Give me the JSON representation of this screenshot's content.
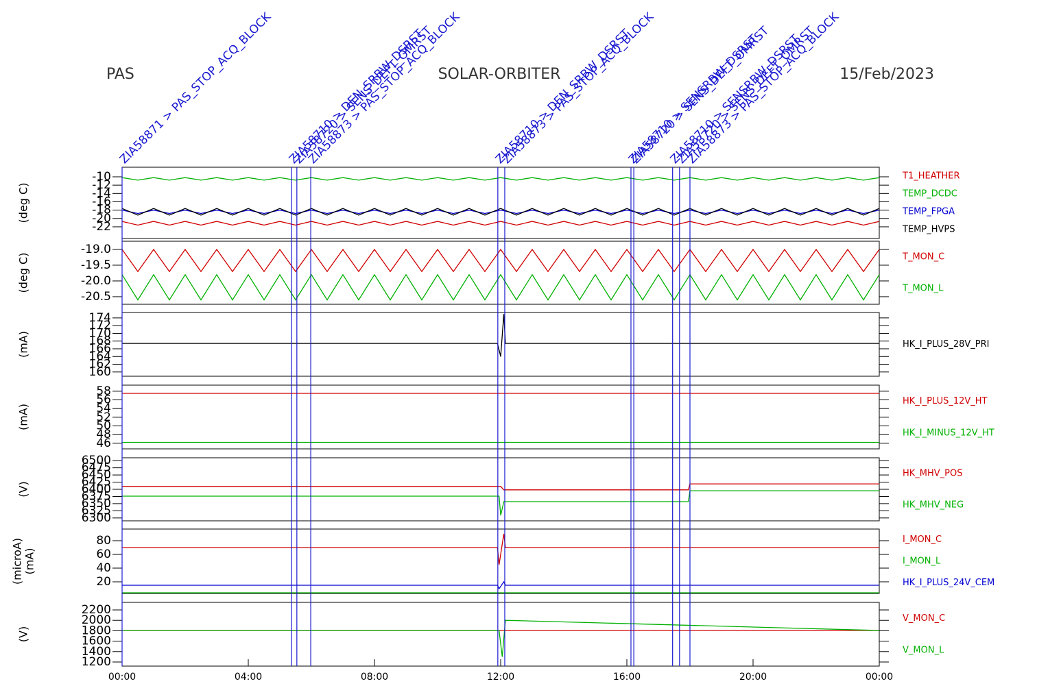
{
  "header": {
    "left": "PAS",
    "center": "SOLAR-ORBITER",
    "right": "15/Feb/2023"
  },
  "time_axis": {
    "xlim": [
      0,
      24
    ],
    "xticks": [
      {
        "value": 0,
        "label": "00:00"
      },
      {
        "value": 4,
        "label": "04:00"
      },
      {
        "value": 8,
        "label": "08:00"
      },
      {
        "value": 12,
        "label": "12:00"
      },
      {
        "value": 16,
        "label": "16:00"
      },
      {
        "value": 20,
        "label": "20:00"
      },
      {
        "value": 24,
        "label": "00:00"
      }
    ]
  },
  "events": [
    {
      "x": 0.0,
      "label": "ZIA58871 > PAS_STOP_ACQ_BLOCK"
    },
    {
      "x": 5.37,
      "label": "ZIA58710 > DEN_SRBW_DSRST"
    },
    {
      "x": 5.54,
      "label": "ZIA58720 > SENS_DEFT_OMRST"
    },
    {
      "x": 5.98,
      "label": "ZIA58873 > PAS_STOP_ACQ_BLOCK"
    },
    {
      "x": 11.91,
      "label": "ZIA58710 > DEN_SRBW_DSRST"
    },
    {
      "x": 12.13,
      "label": "ZIA58873 > PAS_STOP_ACQ_BLOCK"
    },
    {
      "x": 16.13,
      "label": "ZIA58710 > SENSRBW_DSRST"
    },
    {
      "x": 16.22,
      "label": "ZIA58720 > SENS_DEFT_OMRST"
    },
    {
      "x": 17.45,
      "label": "ZIA58710 > SENSRBW_DSRST"
    },
    {
      "x": 17.67,
      "label": "ZIA58720 > SENS_DEFT_OMRST"
    },
    {
      "x": 18.0,
      "label": "ZIA58873 > PAS_STOP_ACQ_BLOCK"
    }
  ],
  "chart_data": [
    {
      "type": "line",
      "ylabel": [
        "(deg C)"
      ],
      "ylim": [
        -24.8,
        -7.7
      ],
      "yticks": [
        -10,
        -12,
        -14,
        -16,
        -18,
        -20,
        -22
      ],
      "x": [
        0,
        0.5,
        1,
        1.5,
        2,
        2.5,
        3,
        3.5,
        4,
        4.5,
        5,
        5.5,
        6,
        6.5,
        7,
        7.5,
        8,
        8.5,
        9,
        9.5,
        10,
        10.5,
        11,
        11.5,
        12,
        12.5,
        13,
        13.5,
        14,
        14.5,
        15,
        15.5,
        16,
        16.5,
        17,
        17.5,
        18,
        18.5,
        19,
        19.5,
        20,
        20.5,
        21,
        21.5,
        22,
        22.5,
        23,
        23.5,
        24
      ],
      "series": [
        {
          "name": "T1_HEATHER",
          "color": "#d00000",
          "values": [
            -20.7,
            -21.6,
            -20.7,
            -21.6,
            -20.7,
            -21.6,
            -20.7,
            -21.6,
            -20.7,
            -21.6,
            -20.7,
            -21.6,
            -20.7,
            -21.6,
            -20.7,
            -21.6,
            -20.7,
            -21.6,
            -20.7,
            -21.6,
            -20.7,
            -21.6,
            -20.7,
            -21.6,
            -20.7,
            -21.6,
            -20.7,
            -21.6,
            -20.7,
            -21.6,
            -20.7,
            -21.6,
            -20.7,
            -21.6,
            -20.7,
            -21.6,
            -20.7,
            -21.6,
            -20.7,
            -21.6,
            -20.7,
            -21.6,
            -20.7,
            -21.6,
            -20.7,
            -21.6,
            -20.7,
            -21.6,
            -20.7
          ]
        },
        {
          "name": "TEMP_DCDC",
          "color": "#00b000",
          "values": [
            -10.2,
            -10.8,
            -10.2,
            -10.8,
            -10.2,
            -10.8,
            -10.2,
            -10.8,
            -10.2,
            -10.8,
            -10.2,
            -10.8,
            -10.2,
            -10.8,
            -10.2,
            -10.8,
            -10.2,
            -10.8,
            -10.2,
            -10.8,
            -10.2,
            -10.8,
            -10.2,
            -10.8,
            -10.2,
            -10.8,
            -10.2,
            -10.8,
            -10.2,
            -10.8,
            -10.2,
            -10.8,
            -10.2,
            -10.8,
            -10.2,
            -10.8,
            -10.2,
            -10.8,
            -10.2,
            -10.8,
            -10.2,
            -10.8,
            -10.2,
            -10.8,
            -10.2,
            -10.8,
            -10.2,
            -10.8,
            -10.2
          ]
        },
        {
          "name": "TEMP_FPGA",
          "color": "#0000d0",
          "values": [
            -18.0,
            -18.8,
            -18.0,
            -18.8,
            -18.0,
            -18.8,
            -18.0,
            -18.8,
            -18.0,
            -18.8,
            -18.0,
            -18.8,
            -18.0,
            -18.8,
            -18.0,
            -18.8,
            -18.0,
            -18.8,
            -18.0,
            -18.8,
            -18.0,
            -18.8,
            -18.0,
            -18.8,
            -18.0,
            -18.8,
            -18.0,
            -18.8,
            -18.0,
            -18.8,
            -18.0,
            -18.8,
            -18.0,
            -18.8,
            -18.0,
            -18.8,
            -18.0,
            -18.8,
            -18.0,
            -18.8,
            -18.0,
            -18.8,
            -18.0,
            -18.8,
            -18.0,
            -18.8,
            -18.0,
            -18.8,
            -18.0
          ]
        },
        {
          "name": "TEMP_HVPS",
          "color": "#000000",
          "values": [
            -17.6,
            -19.2,
            -17.6,
            -19.2,
            -17.6,
            -19.2,
            -17.6,
            -19.2,
            -17.6,
            -19.2,
            -17.6,
            -19.2,
            -17.6,
            -19.2,
            -17.6,
            -19.2,
            -17.6,
            -19.2,
            -17.6,
            -19.2,
            -17.6,
            -19.2,
            -17.6,
            -19.2,
            -17.6,
            -19.2,
            -17.6,
            -19.2,
            -17.6,
            -19.2,
            -17.6,
            -19.2,
            -17.6,
            -19.2,
            -17.6,
            -19.2,
            -17.6,
            -19.2,
            -17.6,
            -19.2,
            -17.6,
            -19.2,
            -17.6,
            -19.2,
            -17.6,
            -19.2,
            -17.6,
            -19.2,
            -17.6
          ]
        }
      ]
    },
    {
      "type": "line",
      "ylabel": [
        "(deg C)"
      ],
      "ylim": [
        -20.74,
        -18.74
      ],
      "yticks": [
        {
          "value": -19.0,
          "label": "-19.0"
        },
        {
          "value": -19.5,
          "label": "-19.5"
        },
        {
          "value": -20.0,
          "label": "-20.0"
        },
        {
          "value": -20.5,
          "label": "-20.5"
        }
      ],
      "x": [
        0,
        0.5,
        1,
        1.5,
        2,
        2.5,
        3,
        3.5,
        4,
        4.5,
        5,
        5.5,
        6,
        6.5,
        7,
        7.5,
        8,
        8.5,
        9,
        9.5,
        10,
        10.5,
        11,
        11.5,
        12,
        12.5,
        13,
        13.5,
        14,
        14.5,
        15,
        15.5,
        16,
        16.5,
        17,
        17.5,
        18,
        18.5,
        19,
        19.5,
        20,
        20.5,
        21,
        21.5,
        22,
        22.5,
        23,
        23.5,
        24
      ],
      "series": [
        {
          "name": "T_MON_C",
          "color": "#d00000",
          "values": [
            -19.0,
            -19.7,
            -19.0,
            -19.7,
            -19.0,
            -19.7,
            -19.0,
            -19.7,
            -19.0,
            -19.7,
            -19.0,
            -19.7,
            -19.0,
            -19.7,
            -19.0,
            -19.7,
            -19.0,
            -19.7,
            -19.0,
            -19.7,
            -19.0,
            -19.7,
            -19.0,
            -19.7,
            -19.0,
            -19.7,
            -19.0,
            -19.7,
            -19.0,
            -19.7,
            -19.0,
            -19.7,
            -19.0,
            -19.7,
            -19.0,
            -19.7,
            -19.0,
            -19.7,
            -19.0,
            -19.7,
            -19.0,
            -19.7,
            -19.0,
            -19.7,
            -19.0,
            -19.7,
            -19.0,
            -19.7,
            -19.0
          ]
        },
        {
          "name": "T_MON_L",
          "color": "#00b000",
          "values": [
            -19.8,
            -20.6,
            -19.8,
            -20.6,
            -19.8,
            -20.6,
            -19.8,
            -20.6,
            -19.8,
            -20.6,
            -19.8,
            -20.6,
            -19.8,
            -20.6,
            -19.8,
            -20.6,
            -19.8,
            -20.6,
            -19.8,
            -20.6,
            -19.8,
            -20.6,
            -19.8,
            -20.6,
            -19.8,
            -20.6,
            -19.8,
            -20.6,
            -19.8,
            -20.6,
            -19.8,
            -20.6,
            -19.8,
            -20.6,
            -19.8,
            -20.6,
            -19.8,
            -20.6,
            -19.8,
            -20.6,
            -19.8,
            -20.6,
            -19.8,
            -20.6,
            -19.8,
            -20.6,
            -19.8,
            -20.6,
            -19.8
          ]
        }
      ]
    },
    {
      "type": "line",
      "ylabel": [
        "(mA)"
      ],
      "ylim": [
        158.9,
        175.4
      ],
      "yticks": [
        160,
        162,
        164,
        166,
        168,
        170,
        172,
        174
      ],
      "x": [
        0,
        11.9,
        12.0,
        12.1,
        12.15,
        24
      ],
      "series": [
        {
          "name": "HK_I_PLUS_28V_PRI",
          "color": "#000000",
          "values": [
            167.4,
            167.4,
            164,
            175,
            167.4,
            167.4
          ]
        }
      ]
    },
    {
      "type": "line",
      "ylabel": [
        "(mA)"
      ],
      "ylim": [
        44.7,
        59.4
      ],
      "yticks": [
        46,
        48,
        50,
        52,
        54,
        56,
        58
      ],
      "x": [
        0,
        24
      ],
      "series": [
        {
          "name": "HK_I_PLUS_12V_HT",
          "color": "#d00000",
          "values": [
            57.5,
            57.5
          ]
        },
        {
          "name": "HK_I_MINUS_12V_HT",
          "color": "#00b000",
          "values": [
            46.2,
            46.2
          ]
        }
      ]
    },
    {
      "type": "line",
      "ylabel": [
        "(V)"
      ],
      "ylim": [
        6290,
        6510
      ],
      "yticks": [
        6300,
        6325,
        6350,
        6375,
        6400,
        6425,
        6450,
        6475,
        6500
      ],
      "x": [
        0,
        11.95,
        12.0,
        12.1,
        12.15,
        17.95,
        18.0,
        24
      ],
      "series": [
        {
          "name": "HK_MHV_POS",
          "color": "#d00000",
          "values": [
            6410,
            6410,
            6410,
            6398,
            6398,
            6398,
            6419,
            6419
          ]
        },
        {
          "name": "HK_MHV_NEG",
          "color": "#00b000",
          "values": [
            6376,
            6376,
            6309,
            6357,
            6357,
            6357,
            6395,
            6395
          ]
        }
      ]
    },
    {
      "type": "line",
      "ylabel": [
        "(microA)",
        "(mA)"
      ],
      "ylim": [
        3,
        97
      ],
      "yticks": [
        20,
        40,
        60,
        80
      ],
      "x": [
        0,
        11.9,
        11.95,
        12.1,
        12.15,
        24
      ],
      "series": [
        {
          "name": "I_MON_C",
          "color": "#d00000",
          "values": [
            70,
            70,
            45,
            90,
            70,
            70
          ]
        },
        {
          "name": "I_MON_L",
          "color": "#00b000",
          "values": [
            4,
            4,
            4,
            4,
            4,
            4
          ]
        },
        {
          "name": "HK_I_PLUS_24V_CEM",
          "color": "#0000d0",
          "values": [
            15,
            15,
            10,
            20,
            15,
            15
          ]
        }
      ]
    },
    {
      "type": "line",
      "ylabel": [
        "(V)"
      ],
      "ylim": [
        1121,
        2345
      ],
      "yticks": [
        1200,
        1400,
        1600,
        1800,
        2000,
        2200
      ],
      "x": [
        0,
        11.95,
        12.05,
        12.15,
        24
      ],
      "series": [
        {
          "name": "V_MON_C",
          "color": "#d00000",
          "values": [
            1805,
            1805,
            1805,
            1805,
            1805
          ]
        },
        {
          "name": "V_MON_L",
          "color": "#00b000",
          "values": [
            1805,
            1805,
            1300,
            2000,
            1805
          ]
        }
      ]
    }
  ]
}
